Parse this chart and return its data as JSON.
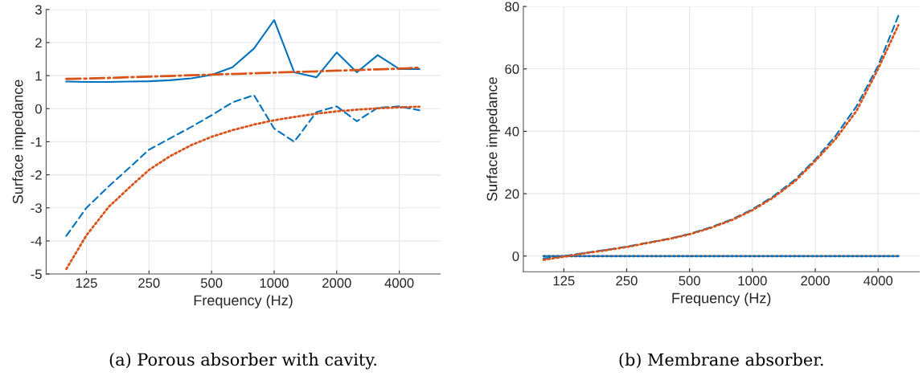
{
  "chart_data": [
    {
      "type": "line",
      "xlabel": "Frequency (Hz)",
      "ylabel": "Surface impedance",
      "log": "x",
      "grid": true,
      "x": [
        100,
        125,
        160,
        200,
        250,
        315,
        400,
        500,
        630,
        800,
        1000,
        1250,
        1600,
        2000,
        2500,
        3150,
        4000,
        5000
      ],
      "series": [
        {
          "color": "#0072bd",
          "line_style": "solid",
          "values": [
            0.82,
            0.81,
            0.81,
            0.82,
            0.83,
            0.86,
            0.92,
            1.02,
            1.25,
            1.82,
            2.68,
            1.1,
            0.95,
            1.7,
            1.1,
            1.62,
            1.2,
            1.2
          ]
        },
        {
          "color": "#0072bd",
          "line_style": "dashed",
          "values": [
            -3.85,
            -3.0,
            -2.35,
            -1.8,
            -1.24,
            -0.9,
            -0.55,
            -0.2,
            0.19,
            0.41,
            -0.6,
            -1.0,
            -0.1,
            0.07,
            -0.38,
            0.03,
            0.07,
            -0.05
          ]
        },
        {
          "color": "#d95319",
          "line_style": "dashdot",
          "values": [
            0.9,
            0.91,
            0.93,
            0.95,
            0.97,
            0.99,
            1.01,
            1.03,
            1.05,
            1.07,
            1.09,
            1.11,
            1.13,
            1.15,
            1.17,
            1.19,
            1.21,
            1.24
          ]
        },
        {
          "color": "#d95319",
          "line_style": "dotted",
          "values": [
            -4.85,
            -3.83,
            -2.97,
            -2.4,
            -1.85,
            -1.44,
            -1.1,
            -0.85,
            -0.65,
            -0.48,
            -0.35,
            -0.25,
            -0.15,
            -0.08,
            -0.03,
            0.01,
            0.04,
            0.06
          ]
        }
      ],
      "xlim": [
        80,
        6300
      ],
      "xticks": [
        125,
        250,
        500,
        1000,
        2000,
        4000
      ],
      "ylim": [
        -5,
        3
      ],
      "yticks": [
        -5,
        -4,
        -3,
        -2,
        -1,
        0,
        1,
        2,
        3
      ],
      "annotations": [
        "(a) Porous absorber with cavity."
      ]
    },
    {
      "type": "line",
      "xlabel": "Frequency (Hz)",
      "ylabel": "Surface impedance",
      "log": "x",
      "grid": true,
      "x": [
        100,
        125,
        160,
        200,
        250,
        315,
        400,
        500,
        630,
        800,
        1000,
        1250,
        1600,
        2000,
        2500,
        3150,
        4000,
        5000
      ],
      "series": [
        {
          "color": "#d95319",
          "line_style": "solid",
          "values": [
            0,
            0,
            0,
            0,
            0,
            0,
            0,
            0,
            0,
            0,
            0,
            0,
            0,
            0,
            0,
            0,
            0,
            0
          ]
        },
        {
          "color": "#0072bd",
          "line_style": "dotted",
          "values": [
            0,
            0,
            0,
            0,
            0,
            0,
            0,
            0,
            0,
            0,
            0,
            0,
            0,
            0,
            0,
            0,
            0,
            0
          ]
        },
        {
          "color": "#0072bd",
          "line_style": "dashed",
          "values": [
            -0.8,
            0,
            1.1,
            2,
            3,
            4.3,
            5.6,
            7.1,
            9.2,
            11.8,
            15,
            19,
            24.5,
            31,
            38.5,
            48,
            61,
            77
          ]
        },
        {
          "color": "#d95319",
          "line_style": "dotted",
          "values": [
            -1.2,
            -0.2,
            1,
            1.9,
            2.9,
            4.2,
            5.5,
            7,
            9,
            11.6,
            14.7,
            18.6,
            24,
            30.5,
            37.5,
            46.5,
            60,
            74
          ]
        }
      ],
      "xlim": [
        80,
        6300
      ],
      "xticks": [
        125,
        250,
        500,
        1000,
        2000,
        4000
      ],
      "ylim": [
        -5,
        80
      ],
      "yticks": [
        0,
        20,
        40,
        60,
        80
      ],
      "annotations": [
        "(b) Membrane absorber."
      ]
    }
  ]
}
